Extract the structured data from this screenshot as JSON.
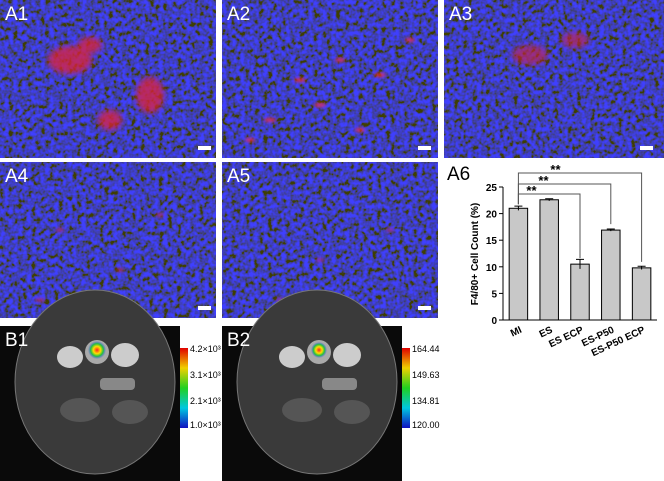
{
  "panels": [
    "A1",
    "A2",
    "A3",
    "A4",
    "A5",
    "B1",
    "B2"
  ],
  "colorbars": [
    {
      "labels": [
        "4.2×10³",
        "3.1×10³",
        "2.1×10³",
        "1.0×10³"
      ]
    },
    {
      "labels": [
        "164.44",
        "149.63",
        "134.81",
        "120.00"
      ]
    }
  ],
  "chart_data": {
    "type": "bar",
    "panel_label": "A6",
    "y_label": "F4/80+ Cell Count (%)",
    "categories": [
      "MI",
      "ES",
      "ES ECP",
      "ES-P50",
      "ES-P50 ECP"
    ],
    "values": [
      21,
      22.6,
      10.5,
      16.9,
      9.8
    ],
    "errors": [
      0.4,
      0.2,
      0.9,
      0.2,
      0.3
    ],
    "color": "#c8c8c8",
    "ylim": [
      0,
      25
    ],
    "yticks": [
      0,
      5,
      10,
      15,
      20,
      25
    ],
    "significance": [
      "**",
      "**",
      "**"
    ]
  }
}
